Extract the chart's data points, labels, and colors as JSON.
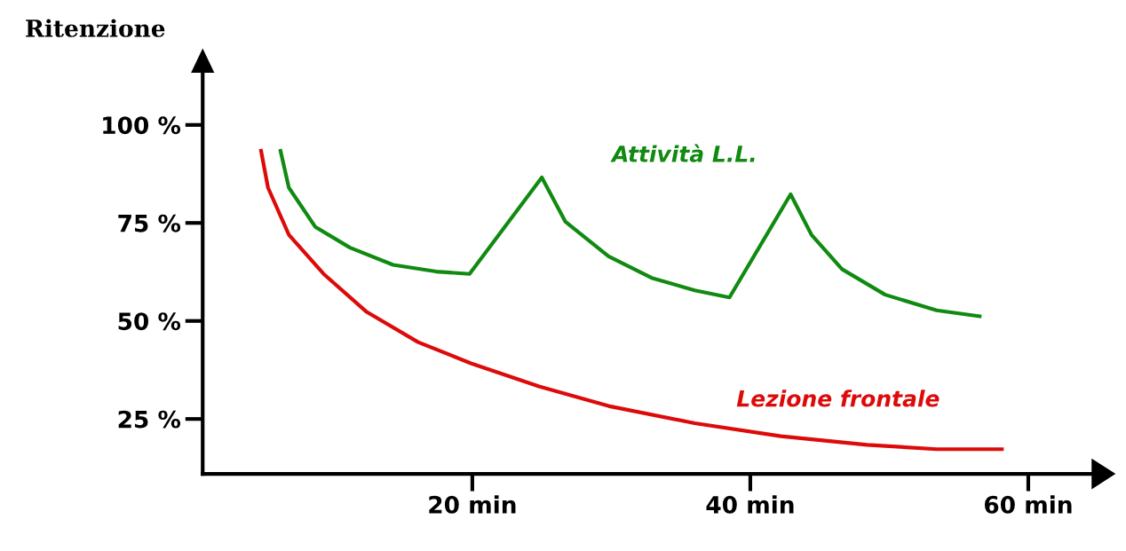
{
  "chart_data": {
    "type": "line",
    "ylabel": "Ritenzione",
    "xlim": [
      0.6,
      64.6
    ],
    "ylim": [
      11,
      115
    ],
    "xticks": [
      {
        "value": 20,
        "label": "20 min"
      },
      {
        "value": 40,
        "label": "40 min"
      },
      {
        "value": 60,
        "label": "60 min"
      }
    ],
    "yticks": [
      {
        "value": 25,
        "label": "25 %"
      },
      {
        "value": 50,
        "label": "50 %"
      },
      {
        "value": 75,
        "label": "75 %"
      },
      {
        "value": 100,
        "label": "100 %"
      }
    ],
    "grid": false,
    "legend": false,
    "marker": "none",
    "line_style": "solid",
    "series": [
      {
        "name": "Attività L.L.",
        "color": "#108a10",
        "x": [
          6.2,
          6.8,
          8.7,
          11.2,
          14.3,
          17.4,
          19.8,
          25.0,
          26.7,
          29.8,
          32.9,
          36.0,
          38.5,
          42.9,
          44.4,
          46.6,
          49.7,
          53.4,
          56.5
        ],
        "values": [
          93.4,
          84,
          74,
          68.7,
          64.3,
          62.6,
          62,
          86.6,
          75.3,
          66.5,
          61,
          57.8,
          56,
          82.3,
          72,
          63.2,
          56.7,
          52.7,
          51.2
        ]
      },
      {
        "name": "Lezione frontale",
        "color": "#dd0a0a",
        "x": [
          4.8,
          5.3,
          6.8,
          9.3,
          12.4,
          16.1,
          19.9,
          24.8,
          29.8,
          36.0,
          42.2,
          48.4,
          53.4,
          58.1
        ],
        "values": [
          93.4,
          84,
          72,
          62,
          52.3,
          44.6,
          39.2,
          33.3,
          28.3,
          23.9,
          20.6,
          18.4,
          17.3,
          17.3
        ]
      }
    ]
  }
}
